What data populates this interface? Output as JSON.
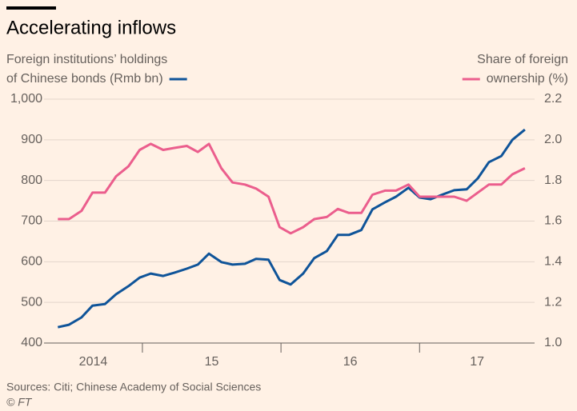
{
  "chart_data": {
    "type": "line",
    "title": "Accelerating inflows",
    "ylabel": [
      "Foreign institutions’ holdings",
      "of Chinese bonds (Rmb bn)"
    ],
    "y2label": [
      "Share of foreign",
      "ownership (%)"
    ],
    "source": "Sources: Citi; Chinese Academy of Social Sciences",
    "credit": "© FT",
    "x": [
      2014.39,
      2014.47,
      2014.56,
      2014.64,
      2014.73,
      2014.81,
      2014.9,
      2014.98,
      2015.06,
      2015.15,
      2015.23,
      2015.32,
      2015.4,
      2015.48,
      2015.57,
      2015.65,
      2015.74,
      2015.82,
      2015.91,
      2015.99,
      2016.07,
      2016.16,
      2016.24,
      2016.33,
      2016.41,
      2016.49,
      2016.58,
      2016.66,
      2016.75,
      2016.83,
      2016.92,
      2017.0,
      2017.08,
      2017.17,
      2017.25,
      2017.34,
      2017.42,
      2017.5,
      2017.59,
      2017.67,
      2017.76
    ],
    "xlim": [
      2014.29,
      2017.83
    ],
    "xticks": [
      {
        "value": 2014,
        "label": "2014"
      },
      {
        "value": 2015,
        "label": "15"
      },
      {
        "value": 2016,
        "label": "16"
      },
      {
        "value": 2017,
        "label": "17"
      }
    ],
    "ylim": [
      400,
      1000
    ],
    "yticks": [
      400,
      500,
      600,
      700,
      800,
      900,
      {
        "value": 1000,
        "label": "1,000"
      }
    ],
    "y2lim": [
      1.0,
      2.2
    ],
    "y2ticks": [
      {
        "value": 1,
        "label": "1.0"
      },
      1.2,
      1.4,
      1.6,
      1.8,
      {
        "value": 2,
        "label": "2.0"
      },
      2.2
    ],
    "grid": true,
    "series": [
      {
        "color": "#0f5499",
        "axis": "y",
        "values": [
          439,
          445,
          463,
          492,
          496,
          520,
          540,
          561,
          571,
          565,
          573,
          583,
          593,
          620,
          599,
          593,
          595,
          607,
          605,
          555,
          544,
          571,
          609,
          626,
          666,
          666,
          678,
          729,
          746,
          760,
          782,
          758,
          754,
          766,
          776,
          778,
          805,
          845,
          860,
          900,
          925
        ]
      },
      {
        "color": "#eb5e8d",
        "axis": "y2",
        "values": [
          1.61,
          1.61,
          1.65,
          1.74,
          1.74,
          1.82,
          1.87,
          1.95,
          1.98,
          1.95,
          1.96,
          1.97,
          1.94,
          1.98,
          1.86,
          1.79,
          1.78,
          1.76,
          1.72,
          1.57,
          1.54,
          1.57,
          1.61,
          1.62,
          1.66,
          1.64,
          1.64,
          1.73,
          1.75,
          1.75,
          1.78,
          1.72,
          1.72,
          1.72,
          1.72,
          1.7,
          1.74,
          1.78,
          1.78,
          1.83,
          1.86
        ]
      }
    ]
  }
}
